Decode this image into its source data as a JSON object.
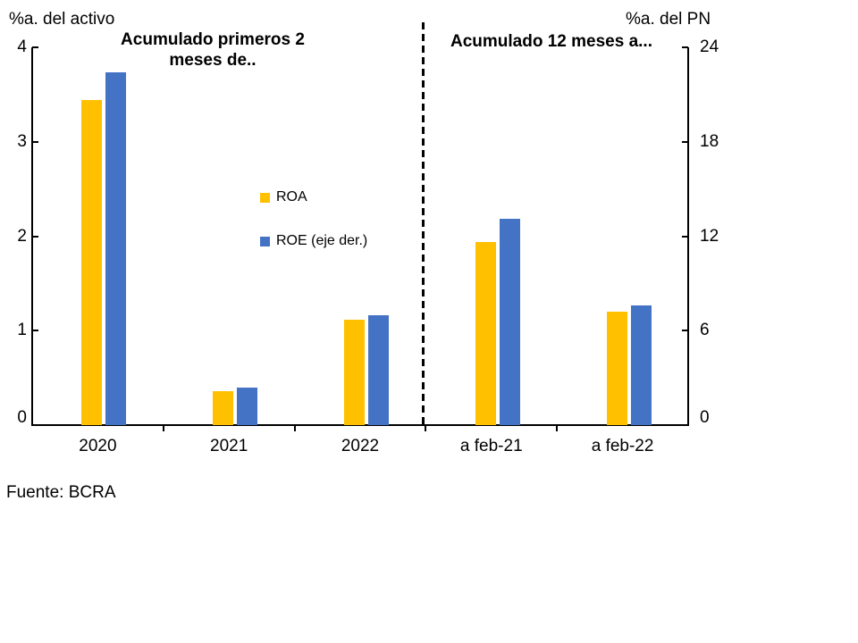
{
  "page": {
    "background": "#ffffff"
  },
  "footer": {
    "source": "Fuente: BCRA"
  },
  "chart_data": {
    "type": "bar",
    "categories": [
      "2020",
      "2021",
      "2022",
      "a feb-21",
      "a feb-22"
    ],
    "series": [
      {
        "name": "ROA",
        "axis": "left",
        "color": "#FFC000",
        "values": [
          3.44,
          0.36,
          1.12,
          1.94,
          1.2
        ]
      },
      {
        "name": "ROE (eje der.)",
        "axis": "right",
        "color": "#4472C4",
        "values": [
          22.4,
          2.4,
          7.0,
          13.1,
          7.6
        ]
      }
    ],
    "left_axis": {
      "label": "%a. del activo",
      "ticks": [
        0,
        1,
        2,
        3,
        4
      ],
      "range": [
        0,
        4
      ]
    },
    "right_axis": {
      "label": "%a. del PN",
      "ticks": [
        0,
        6,
        12,
        18,
        24
      ],
      "range": [
        0,
        24
      ]
    },
    "annotations": [
      "Acumulado primeros 2 meses de..",
      "Acumulado 12 meses a..."
    ],
    "separator": {
      "before_category_index": 3,
      "style": "dashed"
    },
    "legend_position": "center-left-panel",
    "grid": false,
    "axis_color": "#000000"
  }
}
